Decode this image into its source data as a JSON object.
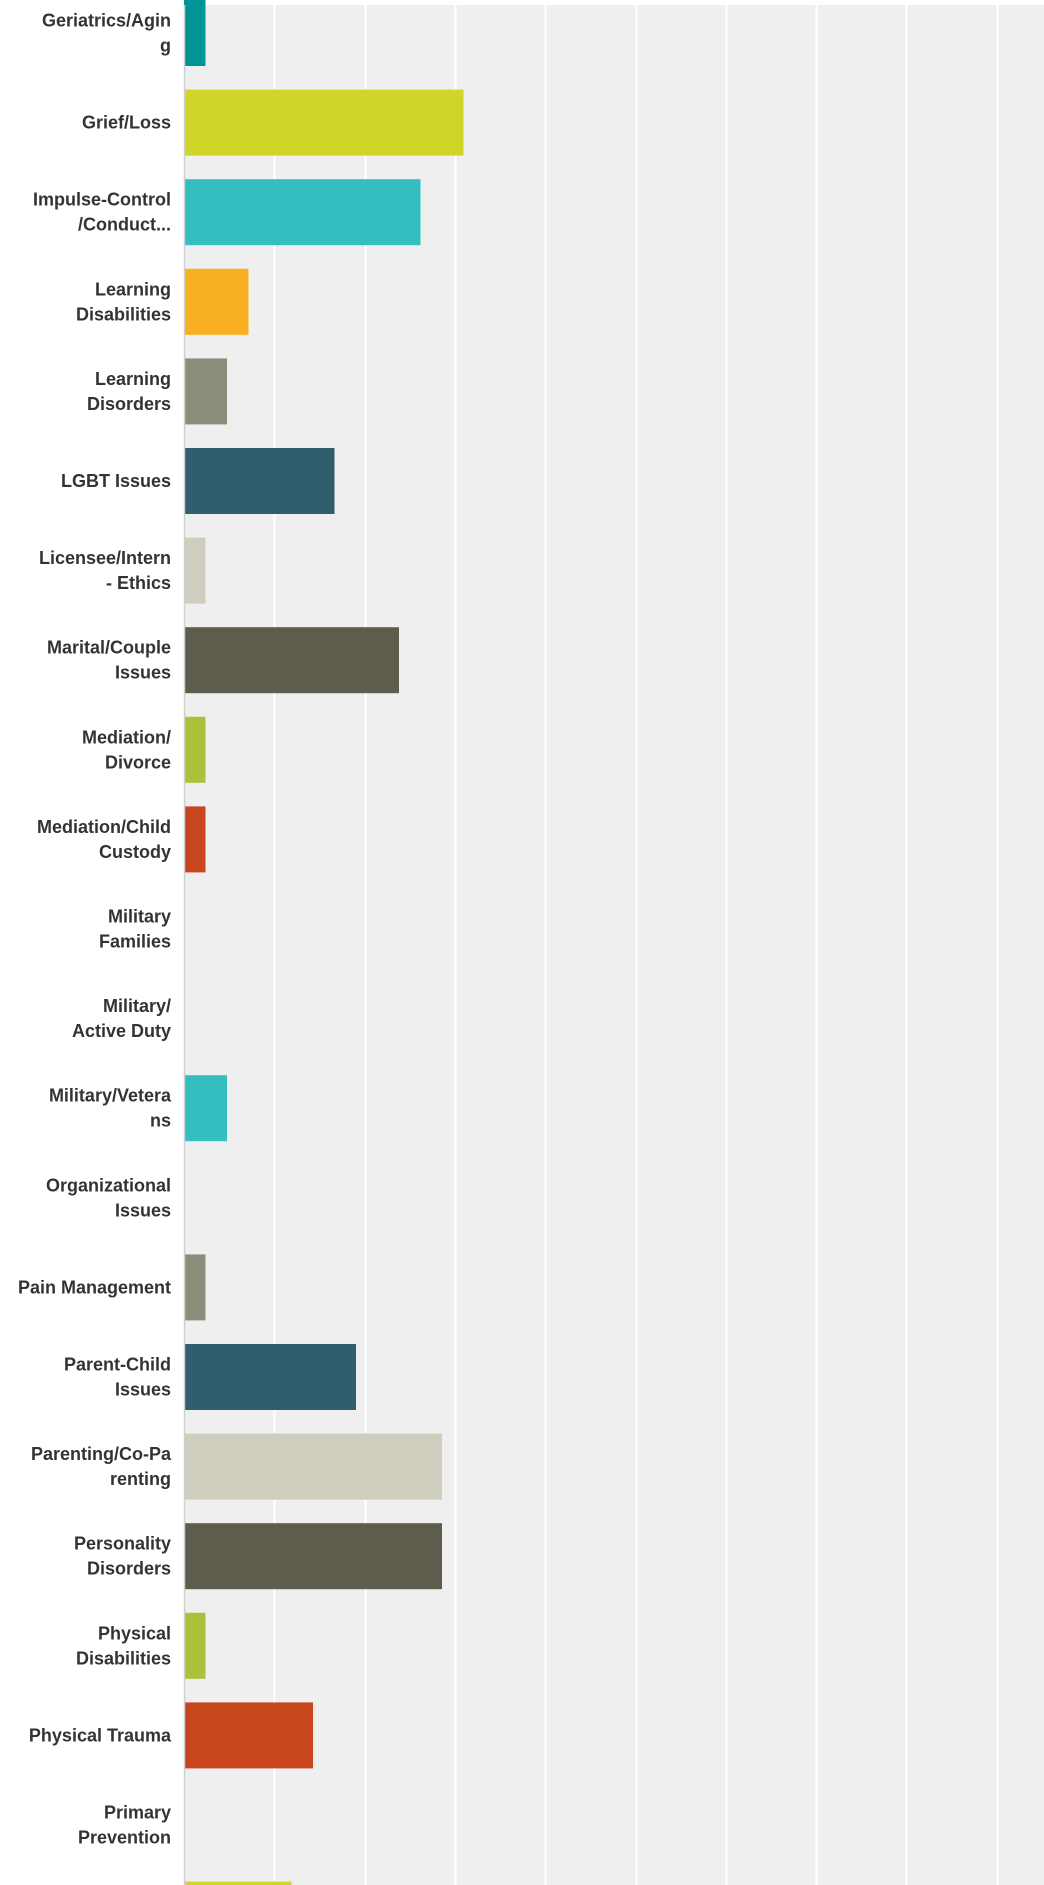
{
  "chart_data": {
    "type": "bar",
    "orientation": "horizontal",
    "grid": true,
    "categories": [
      [
        "Geriatrics/Agin",
        "g"
      ],
      [
        "Grief/Loss"
      ],
      [
        "Impulse-Control",
        "/Conduct..."
      ],
      [
        "Learning",
        "Disabilities"
      ],
      [
        "Learning",
        "Disorders"
      ],
      [
        "LGBT Issues"
      ],
      [
        "Licensee/Intern",
        "- Ethics"
      ],
      [
        "Marital/Couple",
        "Issues"
      ],
      [
        "Mediation/",
        "Divorce"
      ],
      [
        "Mediation/Child",
        "Custody"
      ],
      [
        "Military",
        "Families"
      ],
      [
        "Military/",
        "Active Duty"
      ],
      [
        "Military/Vetera",
        "ns"
      ],
      [
        "Organizational",
        "Issues"
      ],
      [
        "Pain Management"
      ],
      [
        "Parent-Child",
        "Issues"
      ],
      [
        "Parenting/Co-Pa",
        "renting"
      ],
      [
        "Personality",
        "Disorders"
      ],
      [
        "Physical",
        "Disabilities"
      ],
      [
        "Physical Trauma"
      ],
      [
        "Primary",
        "Prevention"
      ],
      [
        ""
      ]
    ],
    "values": [
      1,
      13,
      11,
      3,
      2,
      7,
      1,
      10,
      1,
      1,
      0,
      0,
      2,
      0,
      1,
      8,
      12,
      12,
      1,
      6,
      0,
      5
    ],
    "colors": [
      "#009494",
      "#cfd628",
      "#33bfc0",
      "#f8af20",
      "#8c8c7b",
      "#2f5f6d",
      "#cecdbe",
      "#5d5c4d",
      "#a9c13b",
      "#c7461e",
      "#cfd628",
      "#009494",
      "#33bfc0",
      "#f8af20",
      "#8c8c7b",
      "#2f5f6d",
      "#cecdbe",
      "#5d5c4d",
      "#a9c13b",
      "#c7461e",
      "#33bfc0",
      "#cfd628"
    ],
    "xlim": [
      0,
      40
    ],
    "gridline_step": 4.2,
    "plot_background": "#efefef",
    "gridline_color": "#ffffff",
    "label_color": "#333333"
  }
}
